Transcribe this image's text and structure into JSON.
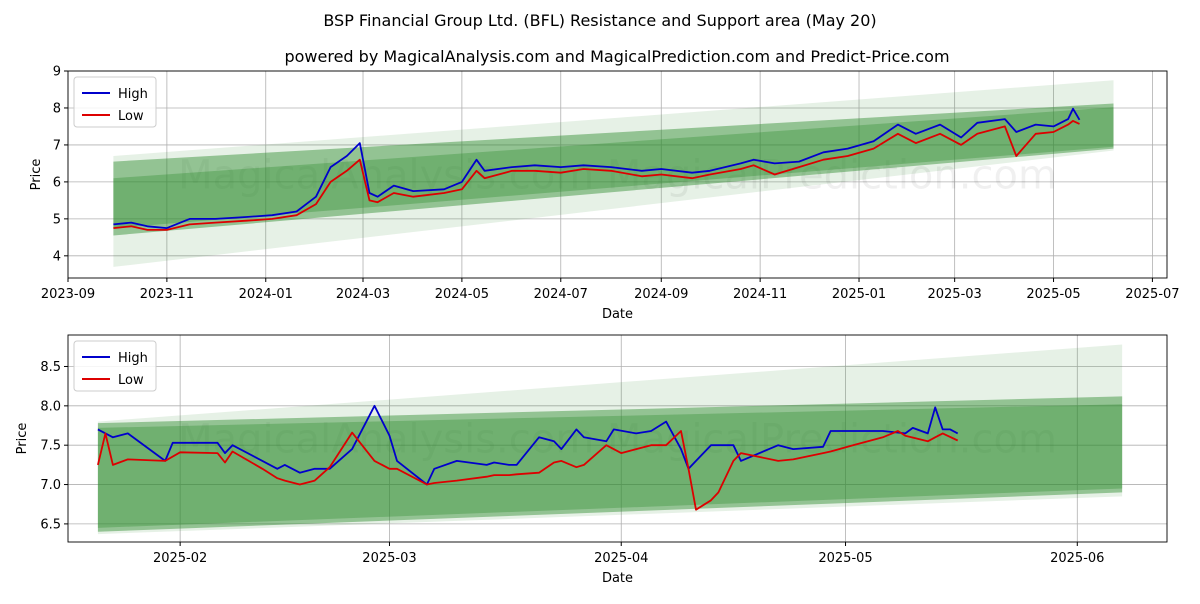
{
  "title": "BSP Financial Group Ltd. (BFL) Resistance and Support area (May 20)",
  "subtitle": "powered by MagicalAnalysis.com and MagicalPrediction.com and Predict-Price.com",
  "watermark": "MagicalAnalysis.com   MagicalPrediction.com",
  "colors": {
    "high": "#0000cc",
    "low": "#dd0000",
    "band": "#2e8b2e",
    "grid": "#b0b0b0"
  },
  "chart_data": [
    {
      "type": "line",
      "xlabel": "Date",
      "ylabel": "Price",
      "xlim": [
        "2023-09-01",
        "2025-07-10"
      ],
      "ylim": [
        3.4,
        9.0
      ],
      "x_ticks": [
        "2023-09",
        "2023-11",
        "2024-01",
        "2024-03",
        "2024-05",
        "2024-07",
        "2024-09",
        "2024-11",
        "2025-01",
        "2025-03",
        "2025-05",
        "2025-07"
      ],
      "y_ticks": [
        4,
        5,
        6,
        7,
        8,
        9
      ],
      "grid": true,
      "legend": {
        "placement": "top-left",
        "entries": [
          "High",
          "Low"
        ]
      },
      "bands": [
        {
          "x": [
            "2023-09-29",
            "2025-06-07"
          ],
          "lower": [
            4.55,
            6.9
          ],
          "upper": [
            6.55,
            8.12
          ],
          "opacity": 0.45
        },
        {
          "x": [
            "2023-09-29",
            "2025-06-07"
          ],
          "lower": [
            4.75,
            6.95
          ],
          "upper": [
            6.1,
            8.02
          ],
          "opacity": 0.35
        },
        {
          "x": [
            "2023-09-29",
            "2025-06-07"
          ],
          "lower": [
            3.7,
            6.85
          ],
          "upper": [
            6.7,
            8.75
          ],
          "opacity": 0.12
        }
      ],
      "series": [
        {
          "name": "High",
          "x": [
            "2023-09-29",
            "2023-10-10",
            "2023-10-20",
            "2023-11-01",
            "2023-11-15",
            "2023-12-01",
            "2023-12-20",
            "2024-01-05",
            "2024-01-20",
            "2024-02-01",
            "2024-02-10",
            "2024-02-20",
            "2024-02-28",
            "2024-03-05",
            "2024-03-10",
            "2024-03-20",
            "2024-04-01",
            "2024-04-20",
            "2024-05-01",
            "2024-05-10",
            "2024-05-15",
            "2024-06-01",
            "2024-06-15",
            "2024-07-01",
            "2024-07-15",
            "2024-08-01",
            "2024-08-20",
            "2024-09-01",
            "2024-09-20",
            "2024-10-01",
            "2024-10-20",
            "2024-10-28",
            "2024-11-10",
            "2024-11-25",
            "2024-12-10",
            "2024-12-25",
            "2025-01-10",
            "2025-01-25",
            "2025-02-05",
            "2025-02-20",
            "2025-03-05",
            "2025-03-15",
            "2025-04-01",
            "2025-04-08",
            "2025-04-20",
            "2025-05-01",
            "2025-05-10",
            "2025-05-13",
            "2025-05-17"
          ],
          "y": [
            4.85,
            4.9,
            4.8,
            4.75,
            5.0,
            5.0,
            5.05,
            5.1,
            5.2,
            5.6,
            6.4,
            6.7,
            7.05,
            5.7,
            5.6,
            5.9,
            5.75,
            5.8,
            6.0,
            6.6,
            6.3,
            6.4,
            6.45,
            6.4,
            6.45,
            6.4,
            6.3,
            6.35,
            6.25,
            6.3,
            6.5,
            6.6,
            6.5,
            6.55,
            6.8,
            6.9,
            7.1,
            7.55,
            7.3,
            7.55,
            7.2,
            7.6,
            7.7,
            7.35,
            7.55,
            7.5,
            7.7,
            7.98,
            7.68
          ]
        },
        {
          "name": "Low",
          "x": [
            "2023-09-29",
            "2023-10-10",
            "2023-10-20",
            "2023-11-01",
            "2023-11-15",
            "2023-12-01",
            "2023-12-20",
            "2024-01-05",
            "2024-01-20",
            "2024-02-01",
            "2024-02-10",
            "2024-02-20",
            "2024-02-28",
            "2024-03-05",
            "2024-03-10",
            "2024-03-20",
            "2024-04-01",
            "2024-04-20",
            "2024-05-01",
            "2024-05-10",
            "2024-05-15",
            "2024-06-01",
            "2024-06-15",
            "2024-07-01",
            "2024-07-15",
            "2024-08-01",
            "2024-08-20",
            "2024-09-01",
            "2024-09-20",
            "2024-10-01",
            "2024-10-20",
            "2024-10-28",
            "2024-11-10",
            "2024-11-25",
            "2024-12-10",
            "2024-12-25",
            "2025-01-10",
            "2025-01-25",
            "2025-02-05",
            "2025-02-20",
            "2025-03-05",
            "2025-03-15",
            "2025-04-01",
            "2025-04-08",
            "2025-04-20",
            "2025-05-01",
            "2025-05-10",
            "2025-05-13",
            "2025-05-17"
          ],
          "y": [
            4.75,
            4.8,
            4.7,
            4.7,
            4.85,
            4.9,
            4.95,
            5.0,
            5.1,
            5.4,
            6.0,
            6.3,
            6.6,
            5.5,
            5.45,
            5.7,
            5.6,
            5.7,
            5.8,
            6.3,
            6.1,
            6.3,
            6.3,
            6.25,
            6.35,
            6.3,
            6.15,
            6.2,
            6.1,
            6.2,
            6.35,
            6.45,
            6.2,
            6.4,
            6.6,
            6.7,
            6.9,
            7.3,
            7.05,
            7.3,
            7.0,
            7.3,
            7.5,
            6.7,
            7.3,
            7.35,
            7.55,
            7.65,
            7.57
          ]
        }
      ]
    },
    {
      "type": "line",
      "xlabel": "Date",
      "ylabel": "Price",
      "xlim": [
        "2025-01-17",
        "2025-06-13"
      ],
      "ylim": [
        6.27,
        8.9
      ],
      "x_ticks": [
        "2025-02",
        "2025-03",
        "2025-04",
        "2025-05",
        "2025-06"
      ],
      "y_ticks": [
        6.5,
        7.0,
        7.5,
        8.0,
        8.5
      ],
      "grid": true,
      "legend": {
        "placement": "top-left",
        "entries": [
          "High",
          "Low"
        ]
      },
      "bands": [
        {
          "x": [
            "2025-01-21",
            "2025-06-07"
          ],
          "lower": [
            6.4,
            6.9
          ],
          "upper": [
            7.78,
            8.12
          ],
          "opacity": 0.45
        },
        {
          "x": [
            "2025-01-21",
            "2025-06-07"
          ],
          "lower": [
            6.45,
            6.95
          ],
          "upper": [
            7.72,
            8.02
          ],
          "opacity": 0.35
        },
        {
          "x": [
            "2025-01-21",
            "2025-06-07"
          ],
          "lower": [
            6.37,
            6.85
          ],
          "upper": [
            7.8,
            8.78
          ],
          "opacity": 0.12
        }
      ],
      "series": [
        {
          "name": "High",
          "x": [
            "2025-01-21",
            "2025-01-23",
            "2025-01-25",
            "2025-01-30",
            "2025-01-31",
            "2025-02-06",
            "2025-02-07",
            "2025-02-08",
            "2025-02-12",
            "2025-02-14",
            "2025-02-15",
            "2025-02-17",
            "2025-02-19",
            "2025-02-21",
            "2025-02-24",
            "2025-02-27",
            "2025-03-01",
            "2025-03-02",
            "2025-03-06",
            "2025-03-07",
            "2025-03-10",
            "2025-03-14",
            "2025-03-15",
            "2025-03-17",
            "2025-03-18",
            "2025-03-21",
            "2025-03-23",
            "2025-03-24",
            "2025-03-26",
            "2025-03-27",
            "2025-03-30",
            "2025-03-31",
            "2025-04-03",
            "2025-04-05",
            "2025-04-07",
            "2025-04-09",
            "2025-04-10",
            "2025-04-11",
            "2025-04-13",
            "2025-04-14",
            "2025-04-16",
            "2025-04-17",
            "2025-04-22",
            "2025-04-24",
            "2025-04-28",
            "2025-04-29",
            "2025-04-30",
            "2025-05-06",
            "2025-05-09",
            "2025-05-10",
            "2025-05-12",
            "2025-05-13",
            "2025-05-14",
            "2025-05-15",
            "2025-05-16"
          ],
          "y": [
            7.7,
            7.6,
            7.65,
            7.3,
            7.53,
            7.53,
            7.4,
            7.5,
            7.3,
            7.2,
            7.25,
            7.15,
            7.2,
            7.2,
            7.45,
            8.0,
            7.62,
            7.3,
            7.0,
            7.2,
            7.3,
            7.25,
            7.28,
            7.25,
            7.25,
            7.6,
            7.55,
            7.45,
            7.7,
            7.6,
            7.55,
            7.7,
            7.65,
            7.68,
            7.8,
            7.45,
            7.2,
            7.3,
            7.5,
            7.5,
            7.5,
            7.3,
            7.5,
            7.45,
            7.48,
            7.68,
            7.68,
            7.68,
            7.65,
            7.72,
            7.65,
            7.98,
            7.7,
            7.7,
            7.65
          ]
        },
        {
          "name": "Low",
          "x": [
            "2025-01-21",
            "2025-01-22",
            "2025-01-23",
            "2025-01-25",
            "2025-01-30",
            "2025-02-01",
            "2025-02-06",
            "2025-02-07",
            "2025-02-08",
            "2025-02-12",
            "2025-02-14",
            "2025-02-15",
            "2025-02-17",
            "2025-02-19",
            "2025-02-21",
            "2025-02-24",
            "2025-02-27",
            "2025-03-01",
            "2025-03-02",
            "2025-03-06",
            "2025-03-07",
            "2025-03-10",
            "2025-03-14",
            "2025-03-15",
            "2025-03-17",
            "2025-03-18",
            "2025-03-21",
            "2025-03-23",
            "2025-03-24",
            "2025-03-26",
            "2025-03-27",
            "2025-03-30",
            "2025-04-01",
            "2025-04-03",
            "2025-04-05",
            "2025-04-07",
            "2025-04-09",
            "2025-04-10",
            "2025-04-11",
            "2025-04-13",
            "2025-04-14",
            "2025-04-16",
            "2025-04-17",
            "2025-04-22",
            "2025-04-24",
            "2025-04-28",
            "2025-04-29",
            "2025-05-02",
            "2025-05-06",
            "2025-05-08",
            "2025-05-09",
            "2025-05-12",
            "2025-05-13",
            "2025-05-14",
            "2025-05-16"
          ],
          "y": [
            7.25,
            7.65,
            7.25,
            7.32,
            7.3,
            7.41,
            7.4,
            7.28,
            7.42,
            7.2,
            7.08,
            7.05,
            7.0,
            7.05,
            7.22,
            7.66,
            7.3,
            7.2,
            7.2,
            7.0,
            7.02,
            7.05,
            7.1,
            7.12,
            7.12,
            7.13,
            7.15,
            7.28,
            7.3,
            7.22,
            7.25,
            7.5,
            7.4,
            7.45,
            7.5,
            7.5,
            7.68,
            7.2,
            6.68,
            6.8,
            6.9,
            7.3,
            7.4,
            7.3,
            7.32,
            7.4,
            7.42,
            7.5,
            7.6,
            7.68,
            7.62,
            7.55,
            7.6,
            7.65,
            7.56
          ]
        }
      ]
    }
  ]
}
